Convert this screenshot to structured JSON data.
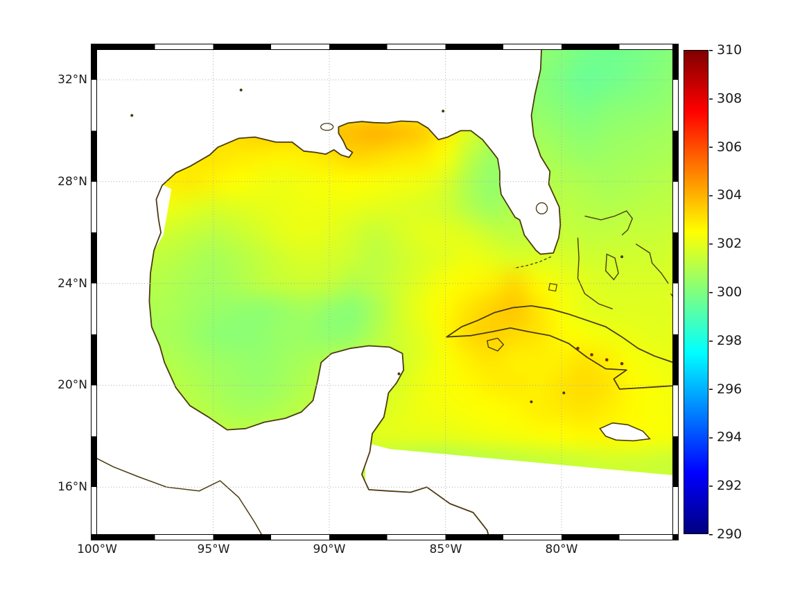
{
  "figure": {
    "x_tick_labels": [
      "100°W",
      "95°W",
      "90°W",
      "85°W",
      "80°W"
    ],
    "y_tick_labels": [
      "32°N",
      "28°N",
      "24°N",
      "20°N",
      "16°N"
    ],
    "colorbar": {
      "tick_labels": [
        "310",
        "308",
        "306",
        "304",
        "302",
        "300",
        "298",
        "296",
        "294",
        "292",
        "290"
      ],
      "min": 290,
      "max": 310,
      "gradient_colors_top_to_bottom": [
        "#800000",
        "#ff0000",
        "#ffff00",
        "#00ffff",
        "#0000ff",
        "#000080"
      ],
      "gradient_stops_percent": [
        0,
        12.5,
        37.5,
        62.5,
        87.5,
        100
      ]
    },
    "colors": {
      "coastline": "#4a3a10",
      "land_fill": "#ffffff",
      "gridline": "#adadad",
      "frame": "#000000",
      "background": "#ffffff",
      "cuba_coast_spot": "#7a2d00"
    }
  },
  "chart_data": {
    "type": "heatmap",
    "title": "",
    "xlabel": "",
    "ylabel": "",
    "x_ticks": [
      "100°W",
      "95°W",
      "90°W",
      "85°W",
      "80°W"
    ],
    "y_ticks": [
      "32°N",
      "28°N",
      "24°N",
      "20°N",
      "16°N"
    ],
    "x_tick_lons": [
      -100,
      -95,
      -90,
      -85,
      -80
    ],
    "y_tick_lats": [
      32,
      28,
      24,
      20,
      16
    ],
    "lon_range": [
      -100,
      -75.2
    ],
    "lat_range": [
      14.1,
      33.2
    ],
    "colorbar_range": [
      290,
      310
    ],
    "colorbar_ticks": [
      310,
      308,
      306,
      304,
      302,
      300,
      298,
      296,
      294,
      292,
      290
    ],
    "colormap": "jet",
    "grid_on": true,
    "legend": "colorbar-right",
    "grid": {
      "lons": [
        -100,
        -99,
        -98,
        -97,
        -96,
        -95,
        -94,
        -93,
        -92,
        -91,
        -90,
        -89,
        -88,
        -87,
        -86,
        -85,
        -84,
        -83,
        -82,
        -81,
        -80,
        -79,
        -78,
        -77,
        -76,
        -75
      ],
      "lats": [
        33,
        32,
        31,
        30,
        29,
        28,
        27,
        26,
        25,
        24,
        23,
        22,
        21,
        20,
        19,
        18,
        17,
        16,
        15,
        14
      ],
      "values": [
        [
          302.0,
          302.0,
          302.0,
          302.0,
          302.0,
          302.0,
          302.0,
          302.0,
          302.0,
          302.0,
          302.0,
          302.0,
          302.0,
          302.0,
          302.0,
          301.5,
          301.0,
          300.8,
          300.5,
          300.3,
          300.1,
          299.8,
          299.7,
          299.8,
          300.0,
          300.2
        ],
        [
          302.2,
          302.2,
          302.2,
          302.2,
          302.2,
          302.2,
          302.2,
          302.2,
          302.2,
          302.2,
          302.2,
          302.2,
          302.2,
          302.2,
          302.2,
          301.6,
          301.0,
          300.7,
          300.4,
          300.2,
          299.9,
          299.6,
          299.7,
          299.9,
          300.1,
          300.3
        ],
        [
          302.4,
          302.4,
          302.4,
          302.4,
          302.4,
          302.4,
          302.4,
          302.4,
          302.4,
          302.4,
          302.4,
          302.4,
          302.4,
          302.4,
          302.4,
          301.8,
          301.2,
          300.8,
          300.5,
          300.3,
          300.1,
          299.9,
          300.1,
          300.2,
          300.3,
          300.5
        ],
        [
          302.5,
          302.5,
          302.6,
          302.8,
          302.8,
          303.0,
          303.2,
          303.4,
          303.4,
          303.3,
          303.6,
          303.8,
          304.0,
          303.8,
          303.5,
          302.8,
          301.8,
          301.2,
          300.9,
          300.6,
          300.4,
          300.2,
          300.4,
          300.5,
          300.6,
          300.7
        ],
        [
          302.4,
          302.4,
          302.5,
          302.7,
          302.9,
          303.0,
          302.9,
          302.8,
          302.7,
          302.8,
          303.0,
          303.3,
          303.2,
          303.0,
          302.9,
          302.4,
          301.3,
          300.6,
          300.7,
          300.9,
          300.7,
          300.5,
          300.6,
          300.7,
          300.8,
          300.9
        ],
        [
          302.4,
          302.5,
          302.6,
          302.8,
          302.9,
          302.7,
          302.5,
          302.3,
          302.2,
          302.3,
          302.4,
          302.5,
          302.4,
          302.3,
          302.2,
          301.8,
          300.9,
          300.4,
          300.8,
          301.0,
          301.0,
          300.9,
          300.8,
          300.9,
          301.0,
          301.1
        ],
        [
          302.0,
          302.0,
          302.1,
          302.2,
          302.0,
          301.8,
          301.9,
          302.0,
          302.1,
          302.2,
          302.2,
          302.1,
          302.0,
          301.9,
          301.8,
          301.6,
          301.0,
          300.6,
          301.0,
          301.2,
          301.2,
          301.1,
          301.0,
          301.1,
          301.2,
          301.2
        ],
        [
          301.8,
          301.8,
          301.7,
          301.6,
          301.4,
          301.2,
          301.4,
          301.7,
          302.0,
          302.1,
          302.0,
          301.7,
          301.4,
          301.7,
          302.0,
          302.0,
          301.8,
          301.4,
          301.2,
          301.4,
          301.4,
          301.3,
          301.3,
          301.4,
          301.4,
          301.5
        ],
        [
          301.4,
          301.4,
          301.3,
          301.2,
          301.0,
          300.8,
          301.0,
          301.3,
          301.6,
          301.8,
          301.7,
          301.5,
          301.2,
          301.5,
          301.8,
          302.0,
          302.2,
          302.0,
          301.8,
          301.8,
          301.8,
          301.6,
          301.6,
          301.6,
          301.6,
          301.7
        ],
        [
          301.2,
          301.2,
          301.1,
          301.0,
          300.8,
          300.7,
          300.9,
          301.2,
          301.4,
          301.5,
          301.4,
          301.0,
          301.2,
          301.6,
          302.0,
          302.4,
          302.6,
          302.8,
          303.2,
          302.6,
          302.2,
          302.0,
          301.8,
          301.8,
          301.8,
          301.8
        ],
        [
          301.0,
          301.0,
          300.9,
          300.9,
          300.7,
          300.5,
          300.4,
          300.3,
          300.5,
          300.7,
          300.4,
          300.2,
          300.8,
          301.6,
          302.2,
          302.6,
          303.0,
          303.4,
          303.6,
          303.0,
          302.4,
          302.0,
          301.9,
          301.9,
          301.9,
          301.9
        ],
        [
          300.8,
          300.8,
          300.8,
          300.8,
          300.6,
          300.3,
          300.2,
          300.3,
          300.5,
          300.5,
          300.3,
          300.4,
          301.0,
          301.6,
          302.0,
          302.6,
          303.2,
          303.4,
          303.2,
          303.0,
          302.6,
          302.4,
          302.2,
          302.1,
          302.0,
          302.0
        ],
        [
          300.9,
          300.9,
          300.9,
          301.0,
          300.8,
          300.6,
          300.5,
          300.4,
          300.6,
          300.8,
          301.0,
          301.2,
          301.4,
          301.6,
          302.0,
          302.4,
          302.8,
          303.0,
          302.8,
          302.8,
          302.8,
          303.0,
          302.8,
          302.4,
          302.2,
          302.1
        ],
        [
          301.0,
          301.0,
          301.0,
          301.2,
          301.0,
          300.8,
          300.6,
          300.5,
          300.7,
          301.0,
          301.2,
          301.4,
          301.6,
          301.8,
          302.2,
          302.4,
          302.6,
          302.8,
          302.9,
          302.8,
          303.0,
          303.2,
          303.0,
          302.6,
          302.4,
          302.2
        ],
        [
          301.2,
          301.2,
          301.3,
          301.4,
          301.2,
          301.0,
          300.8,
          300.8,
          301.0,
          301.2,
          301.4,
          301.6,
          301.8,
          302.0,
          302.2,
          302.3,
          302.4,
          302.5,
          302.6,
          302.8,
          302.9,
          303.0,
          302.8,
          302.6,
          302.4,
          302.3
        ],
        [
          301.3,
          301.3,
          301.3,
          301.3,
          301.3,
          301.3,
          301.3,
          301.3,
          301.3,
          301.3,
          301.3,
          301.3,
          301.9,
          302.0,
          302.0,
          302.0,
          302.1,
          302.2,
          302.3,
          302.4,
          302.5,
          302.6,
          302.6,
          302.5,
          302.4,
          302.3
        ],
        [
          301.3,
          301.3,
          301.3,
          301.3,
          301.3,
          301.3,
          301.3,
          301.3,
          301.3,
          301.3,
          301.3,
          301.3,
          301.2,
          301.0,
          300.9,
          300.9,
          301.0,
          301.1,
          301.2,
          301.3,
          301.4,
          301.5,
          301.6,
          301.6,
          301.5,
          301.4
        ],
        [
          301.5,
          301.5,
          301.5,
          301.5,
          301.5,
          301.5,
          301.5,
          301.5,
          301.5,
          301.5,
          301.5,
          301.5,
          301.5,
          301.5,
          301.5,
          301.5,
          301.5,
          301.5,
          301.5,
          301.5,
          301.5,
          301.5,
          301.5,
          301.5,
          301.5,
          301.5
        ],
        [
          301.4,
          301.4,
          301.4,
          301.4,
          301.4,
          301.4,
          301.4,
          301.4,
          301.4,
          301.4,
          301.4,
          301.4,
          301.4,
          301.4,
          301.4,
          301.4,
          301.4,
          301.4,
          301.4,
          301.4,
          301.4,
          301.4,
          301.4,
          301.4,
          301.4,
          301.4
        ],
        [
          301.3,
          301.3,
          301.3,
          301.3,
          301.3,
          301.3,
          301.3,
          301.3,
          301.3,
          301.3,
          301.3,
          301.3,
          301.3,
          301.3,
          301.3,
          301.3,
          301.3,
          301.3,
          301.3,
          301.3,
          301.3,
          301.3,
          301.3,
          301.3,
          301.3,
          301.3
        ]
      ]
    }
  }
}
